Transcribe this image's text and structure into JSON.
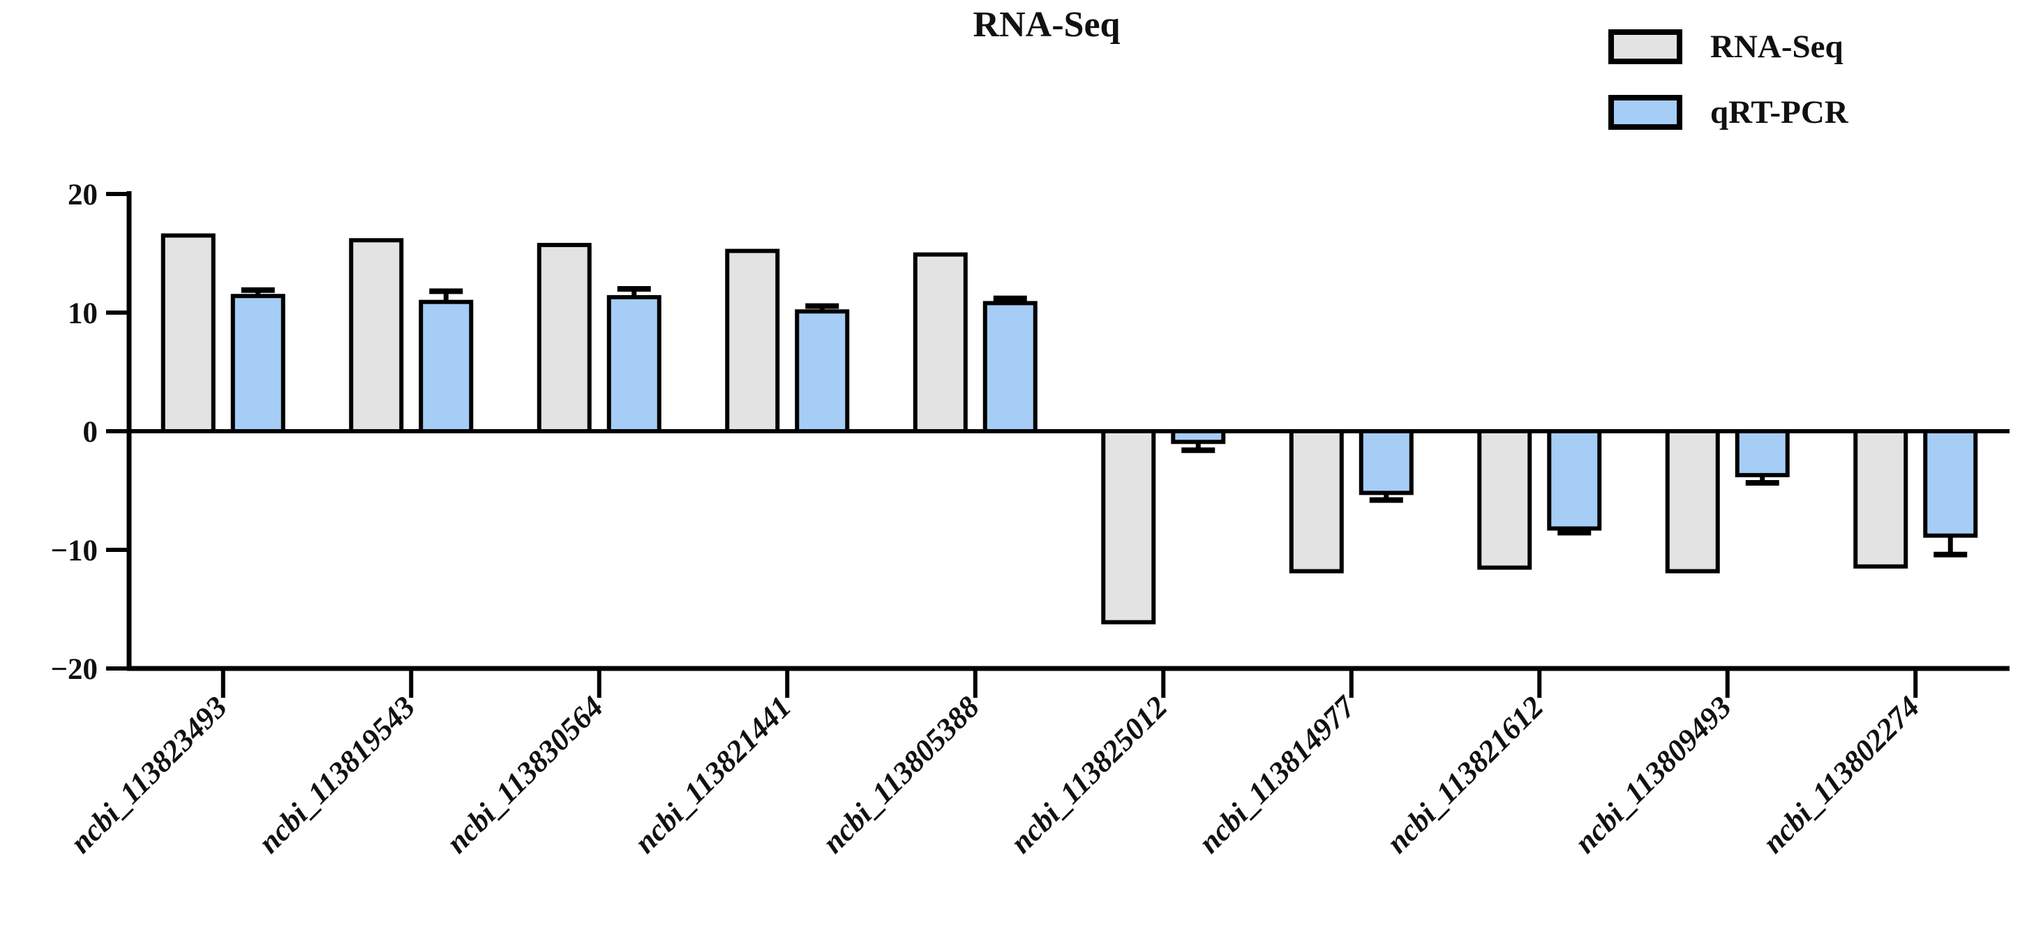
{
  "title": "RNA-Seq",
  "legend": [
    {
      "label": "RNA-Seq",
      "color": "#E3E3E3"
    },
    {
      "label": "qRT-PCR",
      "color": "#A5CDF6"
    }
  ],
  "chart_data": {
    "type": "bar",
    "title": "RNA-Seq",
    "categories": [
      "ncbi_113823493",
      "ncbi_113819543",
      "ncbi_113830564",
      "ncbi_113821441",
      "ncbi_113805388",
      "ncbi_113825012",
      "ncbi_113814977",
      "ncbi_113821612",
      "ncbi_113809493",
      "ncbi_113802274"
    ],
    "series": [
      {
        "name": "RNA-Seq",
        "color": "#E3E3E3",
        "values": [
          16.5,
          16.1,
          15.7,
          15.2,
          14.9,
          -16.1,
          -11.8,
          -11.5,
          -11.8,
          -11.4
        ],
        "errors": null
      },
      {
        "name": "qRT-PCR",
        "color": "#A5CDF6",
        "values": [
          11.4,
          10.9,
          11.3,
          10.1,
          10.8,
          -0.9,
          -5.2,
          -8.2,
          -3.7,
          -8.8
        ],
        "errors": [
          0.5,
          0.9,
          0.7,
          0.45,
          0.4,
          0.7,
          0.6,
          0.35,
          0.65,
          1.6
        ]
      }
    ],
    "ylim": [
      -20,
      20
    ],
    "yticks": [
      20,
      10,
      0,
      -10,
      -20
    ],
    "ytick_labels": [
      "20",
      "10",
      "0",
      "−10",
      "−20"
    ],
    "xlabel": "",
    "ylabel": "",
    "grid": false,
    "legend_position": "top-right",
    "bar_border_color": "#000000",
    "background": "#ffffff"
  }
}
